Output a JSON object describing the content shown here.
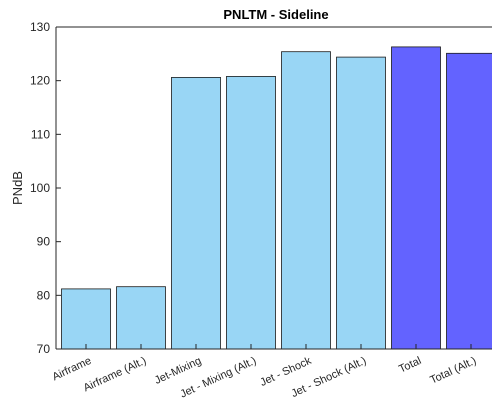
{
  "chart_data": {
    "type": "bar",
    "title": "PNLTM - Sideline",
    "xlabel": "",
    "ylabel": "PNdB",
    "ylim": [
      70,
      130
    ],
    "yticks": [
      70,
      80,
      90,
      100,
      110,
      120,
      130
    ],
    "grid": false,
    "legend": "none",
    "categories": [
      "Airframe",
      "Airframe (Alt.)",
      "Jet-Mixing",
      "Jet - Mixing (Alt.)",
      "Jet - Shock",
      "Jet - Shock (Alt.)",
      "Total",
      "Total (Alt.)"
    ],
    "values": [
      81.2,
      81.6,
      120.6,
      120.8,
      125.4,
      124.4,
      126.3,
      125.1
    ],
    "bar_colors": [
      "#99d6f5",
      "#99d6f5",
      "#99d6f5",
      "#99d6f5",
      "#99d6f5",
      "#99d6f5",
      "#6363ff",
      "#6363ff"
    ]
  }
}
